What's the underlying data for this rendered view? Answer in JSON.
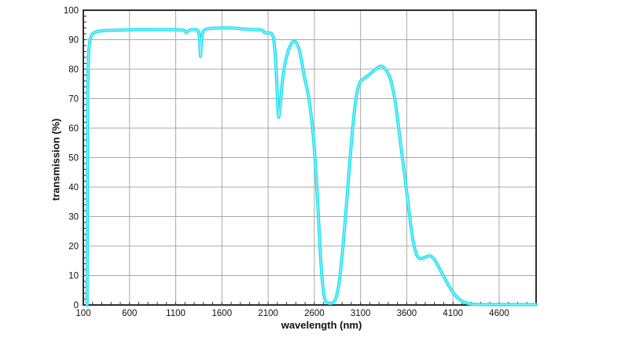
{
  "page": {
    "background": "#ffffff"
  },
  "style": {
    "grid_color": "#a8a8a8",
    "axis_color": "#2f2f2f",
    "text_color": "#111111",
    "curve_color": "#18dff0",
    "curve_core_color": "#8df3fb"
  },
  "chart_data": {
    "type": "line",
    "title": "",
    "xlabel": "wavelength (nm)",
    "ylabel": "transmission (%)",
    "xlim": [
      100,
      5000
    ],
    "ylim": [
      0,
      100
    ],
    "grid": true,
    "legend": "none",
    "x_major_ticks": [
      100,
      600,
      1100,
      1600,
      2100,
      2600,
      3100,
      3600,
      4100,
      4600
    ],
    "x_minor_tick_step": 100,
    "y_major_ticks": [
      0,
      10,
      20,
      30,
      40,
      50,
      60,
      70,
      80,
      90,
      100
    ],
    "y_minor_tick_step": 2,
    "series": [
      {
        "name": "transmission",
        "color": "#18dff0",
        "points": [
          [
            140,
            0
          ],
          [
            141,
            8
          ],
          [
            142,
            20
          ],
          [
            144,
            45
          ],
          [
            146,
            62
          ],
          [
            149,
            74
          ],
          [
            152,
            80
          ],
          [
            156,
            84
          ],
          [
            161,
            87
          ],
          [
            168,
            89
          ],
          [
            177,
            90.5
          ],
          [
            190,
            91.5
          ],
          [
            210,
            92.2
          ],
          [
            240,
            92.7
          ],
          [
            300,
            93.0
          ],
          [
            400,
            93.2
          ],
          [
            550,
            93.3
          ],
          [
            700,
            93.4
          ],
          [
            850,
            93.4
          ],
          [
            1000,
            93.4
          ],
          [
            1100,
            93.4
          ],
          [
            1150,
            93.3
          ],
          [
            1190,
            93.2
          ],
          [
            1215,
            92.4
          ],
          [
            1240,
            93.1
          ],
          [
            1280,
            93.4
          ],
          [
            1320,
            93.4
          ],
          [
            1345,
            92.8
          ],
          [
            1358,
            90.5
          ],
          [
            1368,
            84.3
          ],
          [
            1376,
            88.5
          ],
          [
            1388,
            91.8
          ],
          [
            1402,
            93.0
          ],
          [
            1430,
            93.6
          ],
          [
            1500,
            93.9
          ],
          [
            1600,
            94.0
          ],
          [
            1700,
            94.0
          ],
          [
            1780,
            93.8
          ],
          [
            1850,
            93.6
          ],
          [
            1920,
            93.5
          ],
          [
            1990,
            93.4
          ],
          [
            2030,
            93.3
          ],
          [
            2048,
            92.9
          ],
          [
            2065,
            92.4
          ],
          [
            2090,
            92.3
          ],
          [
            2115,
            92.3
          ],
          [
            2135,
            92.1
          ],
          [
            2152,
            91.2
          ],
          [
            2165,
            89.0
          ],
          [
            2178,
            84.5
          ],
          [
            2192,
            76.5
          ],
          [
            2203,
            68.5
          ],
          [
            2212,
            64.0
          ],
          [
            2220,
            64.5
          ],
          [
            2232,
            68.0
          ],
          [
            2247,
            73.5
          ],
          [
            2265,
            78.5
          ],
          [
            2290,
            83.0
          ],
          [
            2315,
            86.0
          ],
          [
            2340,
            88.0
          ],
          [
            2365,
            89.2
          ],
          [
            2390,
            89.4
          ],
          [
            2412,
            88.6
          ],
          [
            2435,
            86.8
          ],
          [
            2458,
            83.5
          ],
          [
            2480,
            79.5
          ],
          [
            2505,
            75.5
          ],
          [
            2530,
            72.0
          ],
          [
            2555,
            67.0
          ],
          [
            2580,
            60.0
          ],
          [
            2600,
            53.0
          ],
          [
            2618,
            45.0
          ],
          [
            2636,
            35.0
          ],
          [
            2654,
            24.0
          ],
          [
            2672,
            14.0
          ],
          [
            2690,
            7.0
          ],
          [
            2710,
            2.5
          ],
          [
            2730,
            1.0
          ],
          [
            2760,
            0.6
          ],
          [
            2790,
            0.6
          ],
          [
            2815,
            1.2
          ],
          [
            2840,
            3.0
          ],
          [
            2865,
            7.0
          ],
          [
            2890,
            13.5
          ],
          [
            2915,
            21.5
          ],
          [
            2940,
            31.0
          ],
          [
            2965,
            41.0
          ],
          [
            2990,
            51.0
          ],
          [
            3015,
            60.0
          ],
          [
            3040,
            67.5
          ],
          [
            3065,
            72.5
          ],
          [
            3090,
            75.3
          ],
          [
            3115,
            76.3
          ],
          [
            3145,
            77.0
          ],
          [
            3180,
            77.8
          ],
          [
            3220,
            78.8
          ],
          [
            3260,
            79.9
          ],
          [
            3300,
            80.8
          ],
          [
            3330,
            81.0
          ],
          [
            3360,
            80.3
          ],
          [
            3395,
            78.8
          ],
          [
            3425,
            76.5
          ],
          [
            3455,
            72.5
          ],
          [
            3480,
            68.0
          ],
          [
            3505,
            62.0
          ],
          [
            3530,
            55.5
          ],
          [
            3555,
            49.5
          ],
          [
            3580,
            43.5
          ],
          [
            3605,
            37.0
          ],
          [
            3630,
            30.5
          ],
          [
            3655,
            24.5
          ],
          [
            3680,
            20.0
          ],
          [
            3705,
            17.2
          ],
          [
            3730,
            16.0
          ],
          [
            3755,
            15.7
          ],
          [
            3785,
            16.0
          ],
          [
            3815,
            16.4
          ],
          [
            3845,
            16.7
          ],
          [
            3875,
            16.3
          ],
          [
            3905,
            15.2
          ],
          [
            3935,
            13.5
          ],
          [
            3965,
            11.8
          ],
          [
            3995,
            10.0
          ],
          [
            4025,
            8.2
          ],
          [
            4055,
            6.5
          ],
          [
            4085,
            5.0
          ],
          [
            4115,
            3.7
          ],
          [
            4145,
            2.6
          ],
          [
            4175,
            1.8
          ],
          [
            4205,
            1.2
          ],
          [
            4235,
            0.8
          ],
          [
            4265,
            0.5
          ],
          [
            4300,
            0.3
          ],
          [
            4350,
            0.2
          ],
          [
            4450,
            0.15
          ],
          [
            4600,
            0.15
          ],
          [
            4800,
            0.15
          ],
          [
            5000,
            0.15
          ]
        ]
      }
    ]
  }
}
